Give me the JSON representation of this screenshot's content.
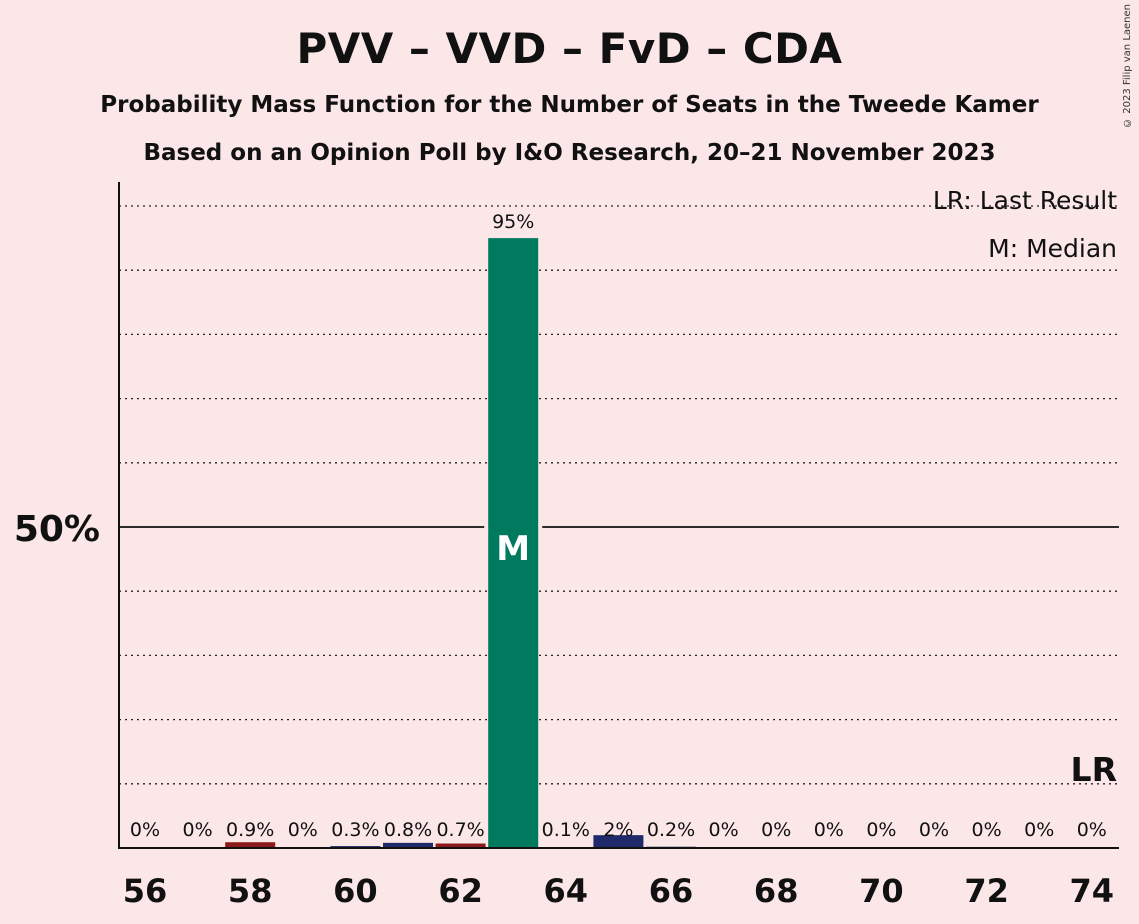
{
  "title": "PVV – VVD – FvD – CDA",
  "subtitle1": "Probability Mass Function for the Number of Seats in the Tweede Kamer",
  "subtitle2": "Based on an Opinion Poll by I&O Research, 20–21 November 2023",
  "copyright": "© 2023 Filip van Laenen",
  "legend": {
    "lr": "LR: Last Result",
    "m": "M: Median"
  },
  "chart_data": {
    "type": "bar",
    "x": [
      56,
      57,
      58,
      59,
      60,
      61,
      62,
      63,
      64,
      65,
      66,
      67,
      68,
      69,
      70,
      71,
      72,
      73,
      74
    ],
    "values": [
      0,
      0,
      0.9,
      0,
      0.3,
      0.8,
      0.7,
      95,
      0.1,
      2,
      0.2,
      0,
      0,
      0,
      0,
      0,
      0,
      0,
      0
    ],
    "labels": [
      "0%",
      "0%",
      "0.9%",
      "0%",
      "0.3%",
      "0.8%",
      "0.7%",
      "95%",
      "0.1%",
      "2%",
      "0.2%",
      "0%",
      "0%",
      "0%",
      "0%",
      "0%",
      "0%",
      "0%",
      "0%"
    ],
    "bar_colors": [
      "#1f2a6b",
      "#1f2a6b",
      "#8b1a1a",
      "#1f2a6b",
      "#1f2a6b",
      "#1f2a6b",
      "#8b1a1a",
      "#007a5e",
      "#1f2a6b",
      "#1f2a6b",
      "#1f2a6b",
      "#1f2a6b",
      "#1f2a6b",
      "#1f2a6b",
      "#1f2a6b",
      "#1f2a6b",
      "#1f2a6b",
      "#1f2a6b",
      "#1f2a6b"
    ],
    "x_tick_labels": [
      "56",
      "58",
      "60",
      "62",
      "64",
      "66",
      "68",
      "70",
      "72",
      "74"
    ],
    "x_tick_values": [
      56,
      58,
      60,
      62,
      64,
      66,
      68,
      70,
      72,
      74
    ],
    "y_tick_label": "50%",
    "y_tick_value": 50,
    "ylim": [
      0,
      103
    ],
    "grid_step": 10,
    "median_seat": 63,
    "median_label": "M",
    "last_result_seat": 74,
    "last_result_label": "LR"
  }
}
